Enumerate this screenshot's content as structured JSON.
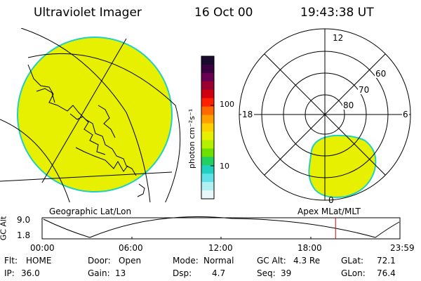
{
  "header": {
    "title": "Ultraviolet Imager",
    "date": "16 Oct 00",
    "time": "19:43:38 UT"
  },
  "colorbar": {
    "unit_label": "photon cm⁻²s⁻¹",
    "ticks": [
      "100",
      "10"
    ],
    "colors": [
      "#1a0a2e",
      "#3a0040",
      "#6a0050",
      "#9a0030",
      "#d00010",
      "#ff2000",
      "#ff6a00",
      "#ffa000",
      "#ffd000",
      "#e6f000",
      "#b4f000",
      "#6ee000",
      "#20d060",
      "#20d0c0",
      "#60e0e8",
      "#b0f0f0",
      "#e8f8f8"
    ]
  },
  "polar": {
    "labels": [
      "12",
      "18",
      "6",
      "0",
      "60",
      "70",
      "80"
    ]
  },
  "panel_labels": {
    "left": "Geographic Lat/Lon",
    "right": "Apex MLat/MLT"
  },
  "alt_plot": {
    "ylabel": "GC Alt",
    "ymax": "9.0",
    "ymin": "1.8",
    "xticks": [
      "00:00",
      "06:00",
      "12:00",
      "18:00",
      "23:59"
    ],
    "current_fraction": 0.82
  },
  "info": {
    "flt_label": "Flt:",
    "flt_value": "HOME",
    "ip_label": "IP:",
    "ip_value": "36.0",
    "door_label": "Door:",
    "door_value": "Open",
    "gain_label": "Gain:",
    "gain_value": "13",
    "mode_label": "Mode:",
    "mode_value": "Normal",
    "dsp_label": "Dsp:",
    "dsp_value": "4.7",
    "gcalt_label": "GC Alt:",
    "gcalt_value": "4.3 Re",
    "seq_label": "Seq:",
    "seq_value": "39",
    "glat_label": "GLat:",
    "glat_value": "72.1",
    "glon_label": "GLon:",
    "glon_value": "76.4"
  },
  "colors": {
    "aurora_fill": "#e6f000",
    "aurora_edge": "#20d0c0",
    "marker": "#e00000"
  }
}
